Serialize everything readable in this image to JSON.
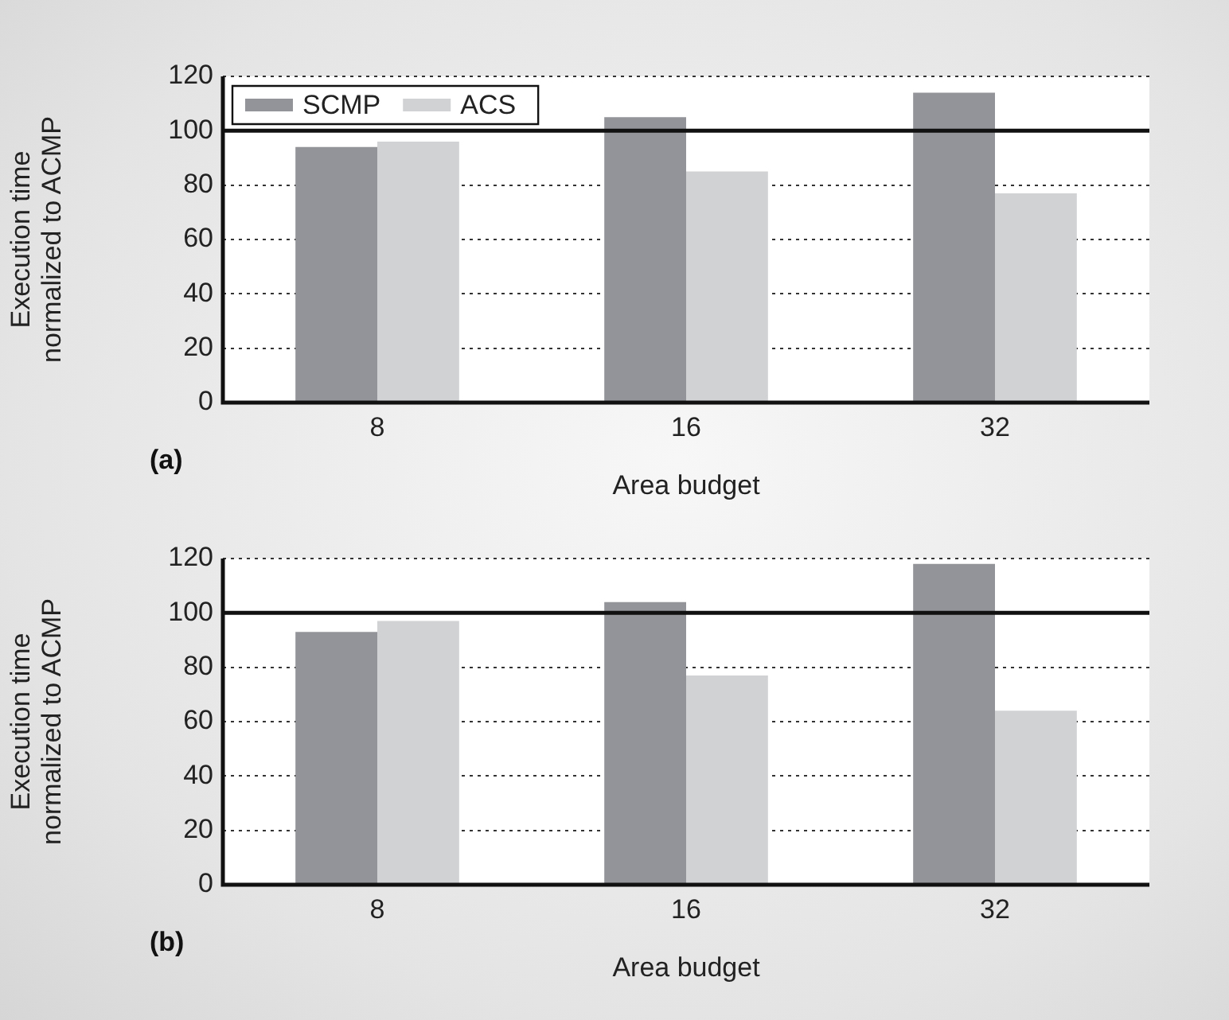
{
  "chart_data": [
    {
      "type": "bar",
      "categories": [
        "8",
        "16",
        "32"
      ],
      "xlabel": "Area budget",
      "ylabel": "Execution time\nnormalized to ACMP",
      "series": [
        {
          "name": "SCMP",
          "color": "#939499",
          "values": [
            94,
            105,
            114
          ]
        },
        {
          "name": "ACS",
          "color": "#d1d2d4",
          "values": [
            96,
            85,
            77
          ]
        }
      ],
      "ylim": [
        0,
        120
      ],
      "yticks": [
        0,
        20,
        40,
        60,
        80,
        100,
        120
      ],
      "grid": "y",
      "legend": "top left",
      "ref_lines": [
        {
          "axis": "y",
          "value": 100,
          "color": "#111111",
          "line_style": "solid"
        }
      ],
      "annotations": [
        "(a)"
      ]
    },
    {
      "type": "bar",
      "categories": [
        "8",
        "16",
        "32"
      ],
      "xlabel": "Area budget",
      "ylabel": "Execution time\nnormalized to ACMP",
      "series": [
        {
          "color": "#939499",
          "values": [
            93,
            104,
            118
          ]
        },
        {
          "color": "#d1d2d4",
          "values": [
            97,
            77,
            64
          ]
        }
      ],
      "ylim": [
        0,
        120
      ],
      "yticks": [
        0,
        20,
        40,
        60,
        80,
        100,
        120
      ],
      "grid": "y",
      "ref_lines": [
        {
          "axis": "y",
          "value": 100,
          "color": "#111111",
          "line_style": "solid"
        }
      ],
      "annotations": [
        "(b)"
      ]
    }
  ]
}
